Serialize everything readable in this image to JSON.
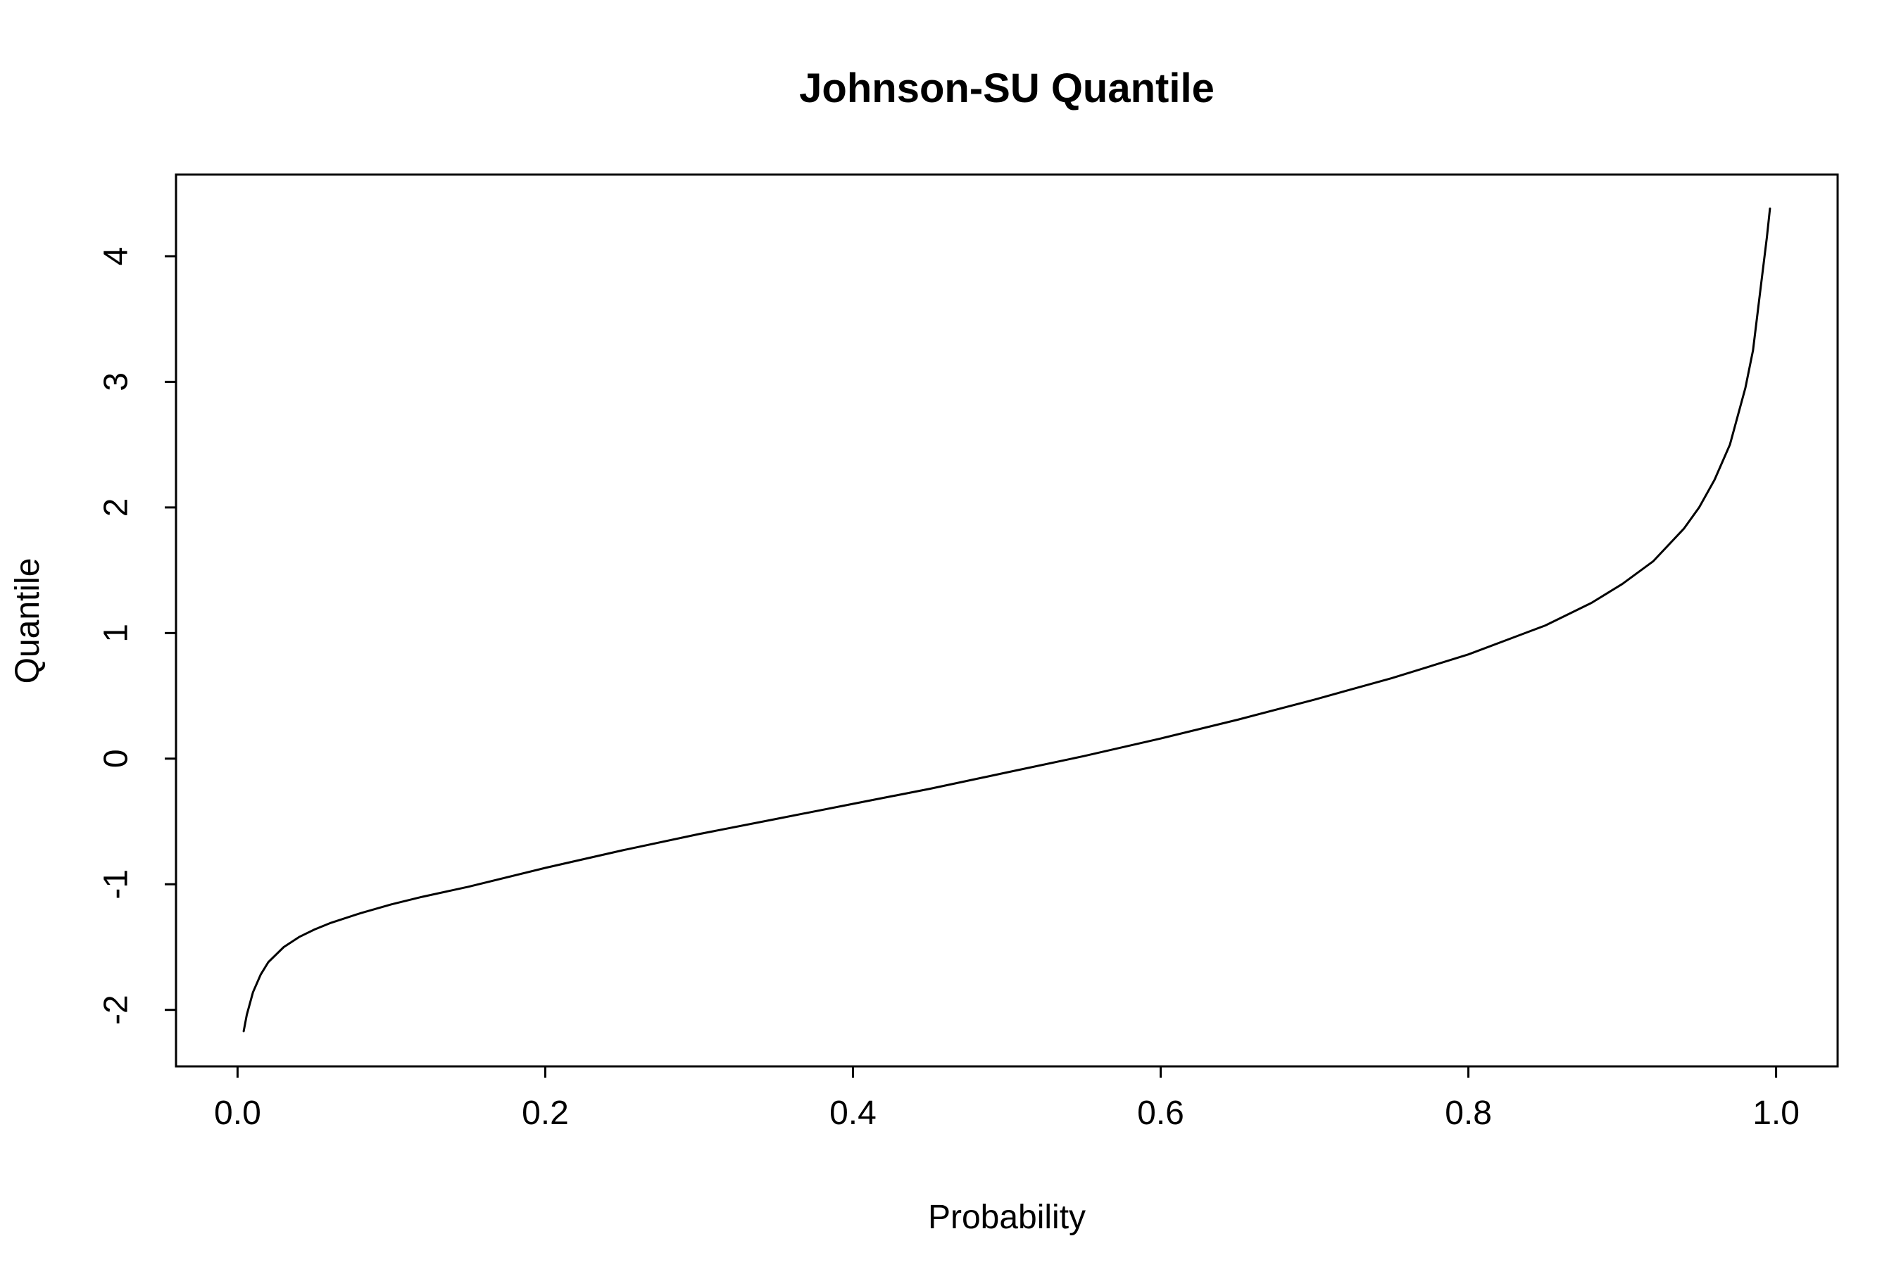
{
  "chart_data": {
    "type": "line",
    "title": "Johnson-SU Quantile",
    "xlabel": "Probability",
    "ylabel": "Quantile",
    "xlim": [
      -0.04,
      1.04
    ],
    "ylim": [
      -2.45,
      4.65
    ],
    "grid": false,
    "legend": "none",
    "x_ticks": [
      0.0,
      0.2,
      0.4,
      0.6,
      0.8,
      1.0
    ],
    "x_tick_labels": [
      "0.0",
      "0.2",
      "0.4",
      "0.6",
      "0.8",
      "1.0"
    ],
    "y_ticks": [
      -2,
      -1,
      0,
      1,
      2,
      3,
      4
    ],
    "y_tick_labels": [
      "-2",
      "-1",
      "0",
      "1",
      "2",
      "3",
      "4"
    ],
    "series": [
      {
        "color": "#000000",
        "x": [
          0.004,
          0.006,
          0.01,
          0.015,
          0.02,
          0.03,
          0.04,
          0.05,
          0.06,
          0.08,
          0.1,
          0.12,
          0.15,
          0.2,
          0.25,
          0.3,
          0.35,
          0.4,
          0.45,
          0.5,
          0.55,
          0.6,
          0.65,
          0.7,
          0.75,
          0.8,
          0.85,
          0.88,
          0.9,
          0.92,
          0.94,
          0.95,
          0.96,
          0.97,
          0.98,
          0.985,
          0.99,
          0.994,
          0.996
        ],
        "y": [
          -2.17,
          -2.04,
          -1.86,
          -1.72,
          -1.62,
          -1.5,
          -1.42,
          -1.36,
          -1.31,
          -1.23,
          -1.16,
          -1.1,
          -1.02,
          -0.87,
          -0.73,
          -0.6,
          -0.48,
          -0.36,
          -0.24,
          -0.11,
          0.02,
          0.16,
          0.31,
          0.47,
          0.64,
          0.83,
          1.06,
          1.24,
          1.39,
          1.57,
          1.83,
          2.0,
          2.22,
          2.5,
          2.95,
          3.25,
          3.75,
          4.15,
          4.38
        ]
      }
    ]
  }
}
